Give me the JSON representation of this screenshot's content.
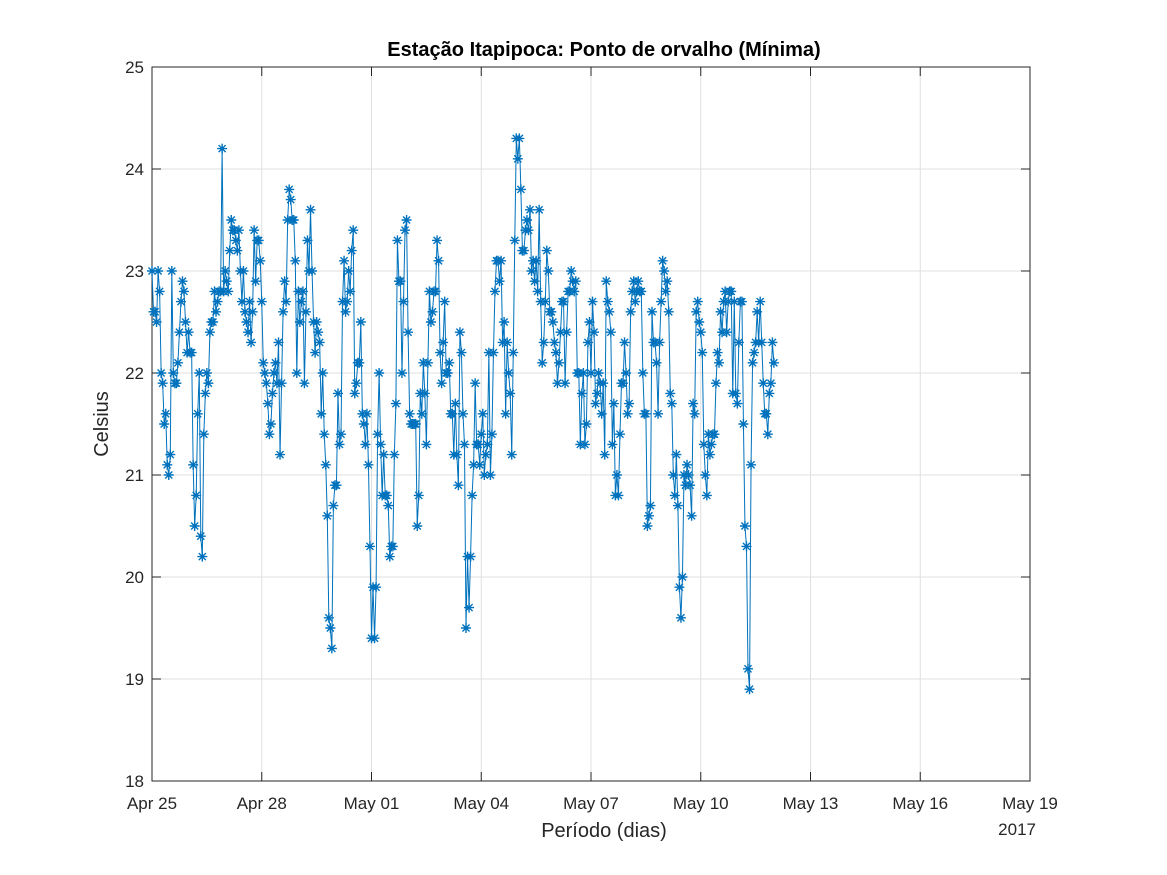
{
  "chart_data": {
    "type": "line",
    "title": "Estação Itapipoca: Ponto de orvalho (Mínima)",
    "xlabel": "Período (dias)",
    "ylabel": "Celsius",
    "year_label": "2017",
    "color": "#0072bd",
    "marker": "asterisk",
    "grid": true,
    "xlim": [
      "2017-04-25",
      "2017-05-19"
    ],
    "ylim": [
      18,
      25
    ],
    "x_ticks": [
      "Apr 25",
      "Apr 28",
      "May 01",
      "May 04",
      "May 07",
      "May 10",
      "May 13",
      "May 16",
      "May 19"
    ],
    "y_ticks": [
      18,
      19,
      20,
      21,
      22,
      23,
      24,
      25
    ],
    "x_tick_dates": [
      "2017-04-25",
      "2017-04-28",
      "2017-05-01",
      "2017-05-04",
      "2017-05-07",
      "2017-05-10",
      "2017-05-13",
      "2017-05-16",
      "2017-05-19"
    ],
    "series": [
      {
        "start": "2017-04-25T00:00",
        "interval_hours": 1,
        "values": [
          23.0,
          22.6,
          22.6,
          22.5,
          23.0,
          22.8,
          22.0,
          21.9,
          21.5,
          21.6,
          21.1,
          21.0,
          21.2,
          23.0,
          22.0,
          21.9,
          21.9,
          22.1,
          22.4,
          22.7,
          22.9,
          22.8,
          22.5,
          22.2,
          22.4,
          22.2,
          22.2,
          21.1,
          20.5,
          20.8,
          21.6,
          22.0,
          20.4,
          20.2,
          21.4,
          21.8,
          22.0,
          21.9,
          22.4,
          22.5,
          22.5,
          22.8,
          22.6,
          22.7,
          22.8,
          22.8,
          24.2,
          22.8,
          23.0,
          22.9,
          22.8,
          23.2,
          23.5,
          23.4,
          23.4,
          23.3,
          23.2,
          23.4,
          23.0,
          22.7,
          23.0,
          22.6,
          22.5,
          22.4,
          22.7,
          22.3,
          22.6,
          23.4,
          22.9,
          23.3,
          23.3,
          23.1,
          22.7,
          22.1,
          22.0,
          21.9,
          21.7,
          21.4,
          21.5,
          21.8,
          22.0,
          22.1,
          21.9,
          22.3,
          21.2,
          21.9,
          22.6,
          22.9,
          22.7,
          23.5,
          23.8,
          23.7,
          23.5,
          23.5,
          23.1,
          22.0,
          22.8,
          22.5,
          22.7,
          22.8,
          21.9,
          22.6,
          23.3,
          23.0,
          23.6,
          23.0,
          22.5,
          22.2,
          22.5,
          22.4,
          22.3,
          21.6,
          22.0,
          21.4,
          21.1,
          20.6,
          19.6,
          19.5,
          19.3,
          20.7,
          20.9,
          20.9,
          21.8,
          21.3,
          21.4,
          22.7,
          23.1,
          22.6,
          22.7,
          23.0,
          22.8,
          23.2,
          23.4,
          21.8,
          21.9,
          22.1,
          22.1,
          22.5,
          21.6,
          21.5,
          21.3,
          21.6,
          21.1,
          20.3,
          19.4,
          19.9,
          19.4,
          19.9,
          21.4,
          22.0,
          21.3,
          20.8,
          21.2,
          20.8,
          20.8,
          20.7,
          20.2,
          20.3,
          20.3,
          21.2,
          21.7,
          23.3,
          22.9,
          22.9,
          22.0,
          22.7,
          23.4,
          23.5,
          22.4,
          21.6,
          21.5,
          21.5,
          21.5,
          21.5,
          20.5,
          20.8,
          21.8,
          21.6,
          22.1,
          21.8,
          21.3,
          22.1,
          22.8,
          22.5,
          22.6,
          22.8,
          22.8,
          23.3,
          23.1,
          22.2,
          21.9,
          22.3,
          22.7,
          22.0,
          22.0,
          22.1,
          21.6,
          21.6,
          21.2,
          21.7,
          21.2,
          20.9,
          22.4,
          22.2,
          21.6,
          21.3,
          19.5,
          20.2,
          19.7,
          20.2,
          20.8,
          21.1,
          21.9,
          21.3,
          21.3,
          21.1,
          21.4,
          21.6,
          21.0,
          21.2,
          21.3,
          22.2,
          21.0,
          21.4,
          22.2,
          22.8,
          23.1,
          23.1,
          22.9,
          23.1,
          22.3,
          22.5,
          21.6,
          22.3,
          22.0,
          21.8,
          21.2,
          22.2,
          23.3,
          24.3,
          24.1,
          24.3,
          23.8,
          23.2,
          23.2,
          23.4,
          23.5,
          23.4,
          23.6,
          23.0,
          23.1,
          22.9,
          23.1,
          22.8,
          23.6,
          22.7,
          22.1,
          22.3,
          22.7,
          23.2,
          23.0,
          22.6,
          22.6,
          22.5,
          22.3,
          22.2,
          21.9,
          22.1,
          22.4,
          22.7,
          22.7,
          21.9,
          22.4,
          22.8,
          22.8,
          23.0,
          22.9,
          22.8,
          22.9,
          22.0,
          22.0,
          21.3,
          21.8,
          22.0,
          21.3,
          21.5,
          22.3,
          22.5,
          22.0,
          22.7,
          22.4,
          21.7,
          21.8,
          22.0,
          21.9,
          21.6,
          21.9,
          21.2,
          22.9,
          22.7,
          22.6,
          22.4,
          21.3,
          21.7,
          20.8,
          21.0,
          20.8,
          21.4,
          21.9,
          21.9,
          22.3,
          22.0,
          21.6,
          21.7,
          22.6,
          22.8,
          22.9,
          22.7,
          22.8,
          22.9,
          22.8,
          22.8,
          22.0,
          21.6,
          21.6,
          20.5,
          20.6,
          20.7,
          22.6,
          22.3,
          22.3,
          22.1,
          21.6,
          22.3,
          22.7,
          23.1,
          23.0,
          22.8,
          22.9,
          22.6,
          21.8,
          21.7,
          21.0,
          20.8,
          21.2,
          20.7,
          19.9,
          19.6,
          20.0,
          21.0,
          20.9,
          21.1,
          21.0,
          20.9,
          20.6,
          21.7,
          21.6,
          22.6,
          22.7,
          22.5,
          22.4,
          22.2,
          21.3,
          21.0,
          20.8,
          21.4,
          21.2,
          21.3,
          21.4,
          21.4,
          21.9,
          22.2,
          22.1,
          22.6,
          22.4,
          22.7,
          22.8,
          22.4,
          22.7,
          22.8,
          22.8,
          21.8,
          22.7,
          21.8,
          21.7,
          22.3,
          22.7,
          22.7,
          21.5,
          20.5,
          20.3,
          19.1,
          18.9,
          21.1,
          22.1,
          22.2,
          22.3,
          22.6,
          22.3,
          22.7,
          22.3,
          21.9,
          21.6,
          21.6,
          21.4,
          21.8,
          21.9,
          22.3,
          22.1
        ]
      }
    ]
  }
}
